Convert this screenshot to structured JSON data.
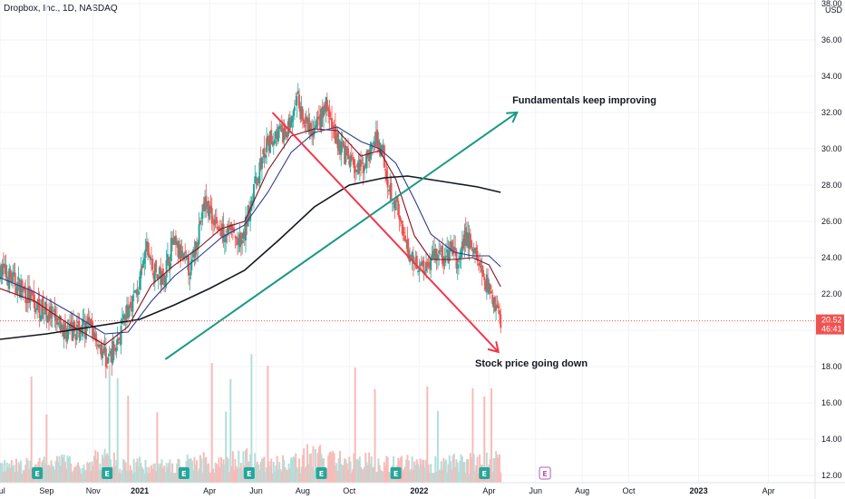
{
  "header": {
    "title": "Dropbox, Inc., 1D, NASDAQ"
  },
  "colors": {
    "up": "#26a69a",
    "down": "#ef5350",
    "volume_up": "#b2dfdb",
    "volume_down": "#f8bbb9",
    "ma_fast": "#880e1f",
    "ma_mid": "#2e3c8a",
    "ma_slow": "#131722",
    "trend_up": "#1a9985",
    "trend_down": "#f2364a",
    "price_tag": "#ef5350",
    "earnings_past": "#26a69a",
    "earnings_future": "#b35cb3"
  },
  "chart_data": {
    "type": "candlestick",
    "symbol": "Dropbox, Inc., 1D, NASDAQ",
    "currency": "USD",
    "ylim": [
      11.6,
      38.2
    ],
    "y_ticks": [
      "12.00",
      "14.00",
      "16.00",
      "18.00",
      "20.00",
      "22.00",
      "24.00",
      "26.00",
      "28.00",
      "30.00",
      "32.00",
      "34.00",
      "36.00",
      "38.00"
    ],
    "x_ticks": [
      "Jul",
      "Sep",
      "Nov",
      "2021",
      "Apr",
      "Jun",
      "Aug",
      "Oct",
      "2022",
      "Apr",
      "Jun",
      "Aug",
      "Oct",
      "2023",
      "Apr"
    ],
    "x_tick_months": [
      0,
      2,
      4,
      6,
      9,
      11,
      13,
      15,
      18,
      21,
      23,
      25,
      27,
      30,
      33
    ],
    "x_range_months": [
      0,
      35
    ],
    "last_price": "20.52",
    "countdown": "46:41",
    "price_path": [
      [
        0.0,
        23.4
      ],
      [
        0.5,
        22.8
      ],
      [
        1.0,
        22.2
      ],
      [
        1.5,
        21.4
      ],
      [
        2.0,
        21.0
      ],
      [
        2.5,
        20.2
      ],
      [
        3.0,
        19.8
      ],
      [
        3.5,
        20.2
      ],
      [
        4.0,
        20.0
      ],
      [
        4.3,
        19.2
      ],
      [
        4.6,
        18.3
      ],
      [
        5.0,
        19.2
      ],
      [
        5.3,
        20.3
      ],
      [
        5.6,
        21.5
      ],
      [
        6.0,
        22.5
      ],
      [
        6.3,
        24.6
      ],
      [
        6.6,
        23.2
      ],
      [
        7.0,
        22.8
      ],
      [
        7.4,
        24.8
      ],
      [
        7.8,
        24.0
      ],
      [
        8.2,
        23.3
      ],
      [
        8.5,
        25.4
      ],
      [
        8.8,
        27.0
      ],
      [
        9.2,
        26.2
      ],
      [
        9.5,
        25.3
      ],
      [
        9.8,
        25.8
      ],
      [
        10.1,
        25.0
      ],
      [
        10.4,
        24.6
      ],
      [
        10.7,
        26.8
      ],
      [
        11.0,
        28.2
      ],
      [
        11.3,
        29.6
      ],
      [
        11.6,
        30.4
      ],
      [
        11.9,
        31.0
      ],
      [
        12.2,
        30.6
      ],
      [
        12.5,
        31.5
      ],
      [
        12.8,
        32.6
      ],
      [
        13.1,
        31.3
      ],
      [
        13.4,
        30.8
      ],
      [
        13.7,
        31.4
      ],
      [
        14.0,
        32.4
      ],
      [
        14.3,
        31.0
      ],
      [
        14.6,
        30.2
      ],
      [
        14.9,
        29.5
      ],
      [
        15.2,
        29.0
      ],
      [
        15.5,
        28.8
      ],
      [
        15.8,
        29.6
      ],
      [
        16.1,
        30.4
      ],
      [
        16.4,
        30.2
      ],
      [
        16.7,
        28.0
      ],
      [
        17.0,
        27.0
      ],
      [
        17.3,
        25.0
      ],
      [
        17.6,
        24.2
      ],
      [
        17.9,
        23.8
      ],
      [
        18.2,
        23.5
      ],
      [
        18.5,
        24.0
      ],
      [
        18.8,
        24.4
      ],
      [
        19.1,
        23.8
      ],
      [
        19.4,
        24.5
      ],
      [
        19.7,
        23.6
      ],
      [
        20.0,
        25.2
      ],
      [
        20.3,
        24.6
      ],
      [
        20.6,
        23.5
      ],
      [
        20.9,
        22.6
      ],
      [
        21.2,
        21.7
      ],
      [
        21.5,
        20.5
      ]
    ],
    "moving_averages": [
      {
        "key": "ma_fast",
        "points": [
          [
            0.0,
            22.3
          ],
          [
            1.5,
            21.6
          ],
          [
            3.0,
            20.3
          ],
          [
            4.5,
            19.2
          ],
          [
            5.5,
            20.2
          ],
          [
            6.5,
            22.5
          ],
          [
            7.5,
            23.6
          ],
          [
            8.5,
            24.5
          ],
          [
            9.5,
            25.6
          ],
          [
            10.5,
            26.0
          ],
          [
            11.5,
            28.8
          ],
          [
            12.5,
            30.7
          ],
          [
            13.5,
            31.1
          ],
          [
            14.5,
            31.0
          ],
          [
            15.5,
            29.6
          ],
          [
            16.3,
            29.9
          ],
          [
            17.0,
            28.3
          ],
          [
            17.8,
            25.2
          ],
          [
            18.5,
            23.9
          ],
          [
            19.5,
            23.9
          ],
          [
            20.3,
            24.0
          ],
          [
            21.0,
            23.6
          ],
          [
            21.5,
            22.4
          ]
        ]
      },
      {
        "key": "ma_mid",
        "points": [
          [
            0.0,
            22.9
          ],
          [
            1.5,
            22.1
          ],
          [
            3.0,
            21.0
          ],
          [
            4.5,
            19.8
          ],
          [
            5.5,
            19.9
          ],
          [
            6.5,
            21.6
          ],
          [
            7.5,
            23.0
          ],
          [
            8.5,
            24.0
          ],
          [
            9.5,
            25.1
          ],
          [
            10.5,
            25.8
          ],
          [
            11.5,
            27.6
          ],
          [
            12.5,
            29.8
          ],
          [
            13.5,
            30.9
          ],
          [
            14.5,
            31.2
          ],
          [
            15.5,
            30.4
          ],
          [
            16.3,
            30.0
          ],
          [
            17.0,
            29.2
          ],
          [
            17.8,
            27.2
          ],
          [
            18.5,
            25.3
          ],
          [
            19.5,
            24.3
          ],
          [
            20.3,
            24.1
          ],
          [
            21.0,
            24.1
          ],
          [
            21.5,
            23.5
          ]
        ]
      },
      {
        "key": "ma_slow",
        "points": [
          [
            0.0,
            19.5
          ],
          [
            2.0,
            19.8
          ],
          [
            4.0,
            20.2
          ],
          [
            6.0,
            20.6
          ],
          [
            7.5,
            21.4
          ],
          [
            9.0,
            22.3
          ],
          [
            10.5,
            23.3
          ],
          [
            12.0,
            25.0
          ],
          [
            13.5,
            26.8
          ],
          [
            15.0,
            28.0
          ],
          [
            16.5,
            28.4
          ],
          [
            17.5,
            28.5
          ],
          [
            18.5,
            28.3
          ],
          [
            19.5,
            28.1
          ],
          [
            20.5,
            27.9
          ],
          [
            21.5,
            27.6
          ]
        ]
      }
    ],
    "volume_profile": [
      0.3,
      0.35,
      0.4,
      0.28,
      0.5,
      0.35,
      0.3,
      0.32,
      0.45,
      0.4,
      0.55,
      0.38,
      0.42,
      0.6,
      0.5,
      0.45,
      0.4,
      0.38,
      0.35,
      0.42,
      0.5,
      0.48,
      0.55,
      0.6,
      0.5,
      0.45,
      0.42,
      0.5,
      0.55,
      0.6,
      0.7,
      0.65,
      0.6,
      0.7,
      0.8,
      0.65
    ],
    "earnings_markers": [
      1.6,
      4.6,
      7.9,
      10.7,
      13.8,
      17.0,
      20.8
    ],
    "future_earnings_markers": [
      23.4
    ],
    "annotations": [
      {
        "text": "Fundamentals keep improving",
        "from": [
          7.1,
          18.4
        ],
        "to": [
          22.2,
          32.0
        ],
        "color_key": "trend_up",
        "label_at": [
          22.0,
          32.5
        ]
      },
      {
        "text": "Stock price going down",
        "from": [
          11.7,
          32.0
        ],
        "to": [
          21.4,
          18.8
        ],
        "color_key": "trend_down",
        "label_at": [
          20.4,
          18.0
        ]
      }
    ]
  }
}
